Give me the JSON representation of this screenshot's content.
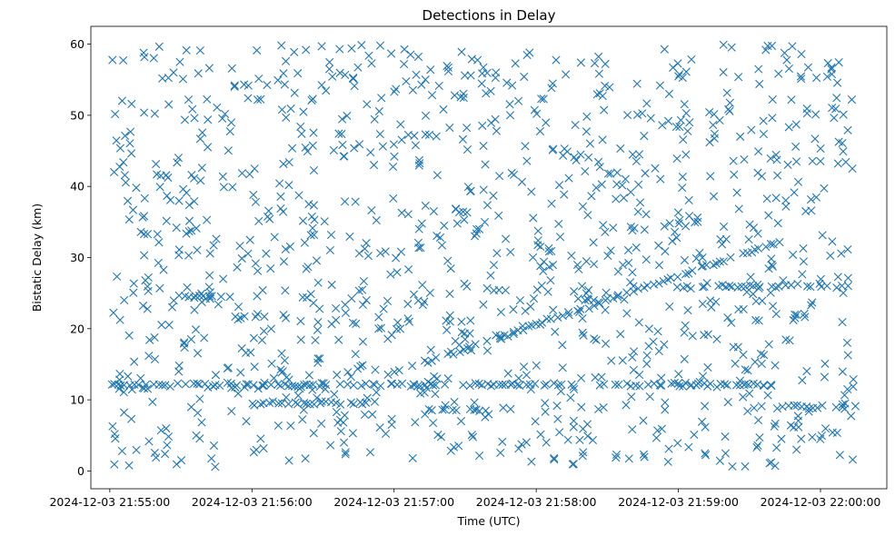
{
  "chart_data": {
    "type": "scatter",
    "title": "Detections in Delay",
    "xlabel": "Time (UTC)",
    "ylabel": "Bistatic Delay (km)",
    "x_ticks": [
      "2024-12-03 21:55:00",
      "2024-12-03 21:56:00",
      "2024-12-03 21:57:00",
      "2024-12-03 21:58:00",
      "2024-12-03 21:59:00",
      "2024-12-03 22:00:00"
    ],
    "y_ticks": [
      0,
      10,
      20,
      30,
      40,
      50,
      60
    ],
    "xlim": [
      "2024-12-03 21:54:52",
      "2024-12-03 22:00:28"
    ],
    "ylim": [
      -2.5,
      62.5
    ],
    "grid": false,
    "marker": "x",
    "color": "#1f77b4",
    "time_range": [
      "2024-12-03 21:55:01",
      "2024-12-03 22:00:14"
    ],
    "tracks": [
      {
        "start": "2024-12-03 21:56:58",
        "end": "2024-12-03 21:59:45",
        "delay_start": 13.6,
        "delay_end": 32.5
      },
      {
        "start": "2024-12-03 21:55:01",
        "end": "2024-12-03 21:59:40",
        "delay": 12.1
      },
      {
        "start": "2024-12-03 21:57:15",
        "end": "2024-12-03 21:57:40",
        "delay": 8.5
      },
      {
        "start": "2024-12-03 21:56:00",
        "end": "2024-12-03 21:56:50",
        "delay": 9.5
      },
      {
        "start": "2024-12-03 21:59:00",
        "end": "2024-12-03 22:00:14",
        "delay": 26.0
      },
      {
        "start": "2024-12-03 21:59:40",
        "end": "2024-12-03 22:00:14",
        "delay": 9.0
      },
      {
        "start": "2024-12-03 21:55:30",
        "end": "2024-12-03 21:55:50",
        "delay": 24.5
      }
    ],
    "noise": {
      "count": 1150,
      "delay_range": [
        0.5,
        60
      ]
    }
  }
}
